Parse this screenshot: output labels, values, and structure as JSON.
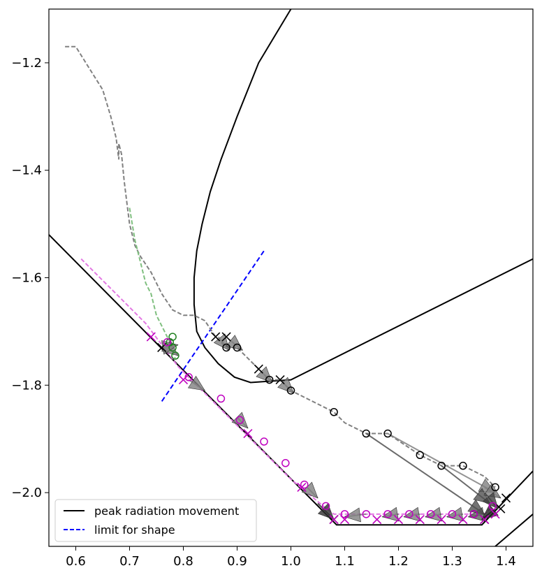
{
  "chart_data": {
    "type": "line",
    "title": "",
    "xlabel": "",
    "ylabel": "",
    "xlim": [
      0.55,
      1.45
    ],
    "ylim": [
      -2.1,
      -1.1
    ],
    "xticks": [
      0.6,
      0.7,
      0.8,
      0.9,
      1.0,
      1.1,
      1.2,
      1.3,
      1.4
    ],
    "xtick_labels": [
      "0.6",
      "0.7",
      "0.8",
      "0.9",
      "1.0",
      "1.1",
      "1.2",
      "1.3",
      "1.4"
    ],
    "yticks": [
      -1.2,
      -1.4,
      -1.6,
      -1.8,
      -2.0
    ],
    "ytick_labels": [
      "−1.2",
      "−1.4",
      "−1.6",
      "−1.8",
      "−2.0"
    ],
    "grid": false,
    "legend_position": "lower-left",
    "legend": [
      {
        "label": "peak radiation movement",
        "color": "#000000",
        "style": "solid"
      },
      {
        "label": "limit for shape",
        "color": "#0000ff",
        "style": "dashed"
      }
    ],
    "boundaries": [
      {
        "x": [
          0.55,
          1.085,
          1.355,
          1.45
        ],
        "y": [
          -1.52,
          -2.06,
          -2.06,
          -1.96
        ],
        "color": "#000000"
      },
      {
        "x": [
          1.38,
          1.45
        ],
        "y": [
          -2.1,
          -2.04
        ],
        "color": "#000000"
      },
      {
        "x": [
          1.0,
          0.94,
          0.9,
          0.87,
          0.85,
          0.835,
          0.825,
          0.82,
          0.82,
          0.825,
          0.84,
          0.865,
          0.895,
          0.925,
          1.0,
          1.45
        ],
        "y": [
          -1.1,
          -1.2,
          -1.3,
          -1.38,
          -1.44,
          -1.5,
          -1.55,
          -1.6,
          -1.65,
          -1.7,
          -1.73,
          -1.76,
          -1.785,
          -1.795,
          -1.79,
          -1.565
        ],
        "color": "#000000"
      }
    ],
    "limit_line": {
      "x": [
        0.76,
        0.95
      ],
      "y": [
        -1.83,
        -1.55
      ],
      "color": "#0000ff"
    },
    "series": [
      {
        "color": "#808080",
        "x": [
          0.58,
          0.6,
          0.625,
          0.65,
          0.665,
          0.675,
          0.68,
          0.68,
          0.685,
          0.69,
          0.695,
          0.7,
          0.71,
          0.72,
          0.74,
          0.76,
          0.78,
          0.8,
          0.82,
          0.84,
          0.86,
          0.88,
          0.9,
          0.92,
          0.94,
          0.96,
          0.98,
          1.0,
          1.04,
          1.08,
          1.1,
          1.14,
          1.18,
          1.24,
          1.28,
          1.32,
          1.36,
          1.38
        ],
        "y": [
          -1.17,
          -1.17,
          -1.21,
          -1.25,
          -1.3,
          -1.34,
          -1.38,
          -1.35,
          -1.37,
          -1.42,
          -1.46,
          -1.5,
          -1.54,
          -1.56,
          -1.59,
          -1.63,
          -1.66,
          -1.67,
          -1.67,
          -1.68,
          -1.71,
          -1.73,
          -1.73,
          -1.75,
          -1.77,
          -1.79,
          -1.79,
          -1.81,
          -1.83,
          -1.85,
          -1.87,
          -1.89,
          -1.89,
          -1.93,
          -1.95,
          -1.95,
          -1.97,
          -1.99
        ]
      },
      {
        "color": "#7fbf7f",
        "x": [
          0.7,
          0.705,
          0.71,
          0.715,
          0.72,
          0.725,
          0.73,
          0.74,
          0.745,
          0.75,
          0.76,
          0.77,
          0.775,
          0.78,
          0.78,
          0.785
        ],
        "y": [
          -1.47,
          -1.5,
          -1.53,
          -1.55,
          -1.57,
          -1.59,
          -1.61,
          -1.63,
          -1.65,
          -1.67,
          -1.69,
          -1.71,
          -1.72,
          -1.73,
          -1.74,
          -1.75
        ]
      },
      {
        "color": "#e377e3",
        "x": [
          0.61,
          0.64,
          0.67,
          0.7,
          0.73,
          0.76,
          0.79,
          0.82,
          0.85,
          0.88,
          0.91,
          0.94,
          0.97,
          1.0,
          1.03,
          1.06,
          1.08,
          1.1,
          1.14,
          1.18,
          1.22,
          1.26,
          1.3,
          1.34,
          1.36,
          1.38
        ],
        "y": [
          -1.565,
          -1.595,
          -1.625,
          -1.655,
          -1.685,
          -1.725,
          -1.765,
          -1.795,
          -1.825,
          -1.855,
          -1.885,
          -1.915,
          -1.945,
          -1.975,
          -2.0,
          -2.025,
          -2.04,
          -2.04,
          -2.04,
          -2.04,
          -2.04,
          -2.04,
          -2.04,
          -2.04,
          -2.04,
          -2.02
        ]
      }
    ],
    "markers": [
      {
        "marker": "o",
        "color": "#000000",
        "x": [
          0.88,
          0.9,
          0.96,
          1.0,
          1.08,
          1.14,
          1.18,
          1.24,
          1.28,
          1.32,
          1.38,
          1.34
        ]
      },
      {
        "marker": "x",
        "color": "#000000",
        "x2": [
          0.86,
          0.88,
          0.94,
          0.98,
          0.76,
          1.36,
          1.4,
          1.39,
          1.08
        ]
      },
      {
        "marker": "o",
        "color": "#208020",
        "x": [
          0.78,
          0.78,
          0.785,
          0.775
        ]
      },
      {
        "marker": "o",
        "color": "#bf00bf",
        "x": [
          0.77,
          0.81,
          0.87,
          0.905,
          0.95,
          0.99,
          1.025,
          1.065,
          1.1,
          1.14,
          1.18,
          1.22,
          1.26,
          1.3,
          1.34,
          1.375
        ]
      },
      {
        "marker": "x",
        "color": "#bf00bf",
        "x": [
          0.74,
          0.8,
          0.92,
          1.02,
          1.08,
          1.1,
          1.16,
          1.2,
          1.24,
          1.28,
          1.32,
          1.36,
          1.38
        ]
      }
    ],
    "marker_y": {
      "black_o": [
        -1.73,
        -1.73,
        -1.79,
        -1.81,
        -1.85,
        -1.89,
        -1.89,
        -1.93,
        -1.95,
        -1.95,
        -1.99,
        -2.04
      ],
      "black_x": [
        -1.71,
        -1.71,
        -1.77,
        -1.79,
        -1.73,
        -2.05,
        -2.01,
        -2.03,
        -2.05
      ],
      "green_o": [
        -1.71,
        -1.73,
        -1.745,
        -1.72
      ],
      "magenta_o": [
        -1.72,
        -1.785,
        -1.825,
        -1.865,
        -1.905,
        -1.945,
        -1.985,
        -2.025,
        -2.04,
        -2.04,
        -2.04,
        -2.04,
        -2.04,
        -2.04,
        -2.04,
        -2.025
      ],
      "magenta_x": [
        -1.71,
        -1.79,
        -1.89,
        -1.99,
        -2.05,
        -2.05,
        -2.05,
        -2.05,
        -2.05,
        -2.05,
        -2.05,
        -2.05,
        -2.04
      ]
    },
    "arrows": [
      {
        "x": [
          0.865,
          0.885
        ],
        "y": [
          -1.71,
          -1.735
        ],
        "shade": "#808080"
      },
      {
        "x": [
          0.885,
          0.91
        ],
        "y": [
          -1.715,
          -1.735
        ],
        "shade": "#808080"
      },
      {
        "x": [
          0.945,
          0.965
        ],
        "y": [
          -1.775,
          -1.795
        ],
        "shade": "#808080"
      },
      {
        "x": [
          0.985,
          1.005
        ],
        "y": [
          -1.795,
          -1.815
        ],
        "shade": "#808080"
      },
      {
        "x": [
          0.76,
          0.79
        ],
        "y": [
          -1.72,
          -1.745
        ],
        "shade": "#808080"
      },
      {
        "x": [
          0.76,
          0.79
        ],
        "y": [
          -1.73,
          -1.725
        ],
        "shade": "#808080"
      },
      {
        "x": [
          0.81,
          0.84
        ],
        "y": [
          -1.79,
          -1.81
        ],
        "shade": "#808080"
      },
      {
        "x": [
          0.9,
          0.92
        ],
        "y": [
          -1.86,
          -1.88
        ],
        "shade": "#808080"
      },
      {
        "x": [
          1.03,
          1.05
        ],
        "y": [
          -1.99,
          -2.01
        ],
        "shade": "#808080"
      },
      {
        "x": [
          1.05,
          1.08
        ],
        "y": [
          -2.02,
          -2.05
        ],
        "shade": "#303030"
      },
      {
        "x": [
          1.14,
          1.1
        ],
        "y": [
          -2.04,
          -2.045
        ],
        "shade": "#808080"
      },
      {
        "x": [
          1.2,
          1.17
        ],
        "y": [
          -2.04,
          -2.045
        ],
        "shade": "#808080"
      },
      {
        "x": [
          1.24,
          1.21
        ],
        "y": [
          -2.04,
          -2.045
        ],
        "shade": "#808080"
      },
      {
        "x": [
          1.28,
          1.25
        ],
        "y": [
          -2.04,
          -2.045
        ],
        "shade": "#808080"
      },
      {
        "x": [
          1.32,
          1.29
        ],
        "y": [
          -2.04,
          -2.045
        ],
        "shade": "#808080"
      },
      {
        "x": [
          1.36,
          1.33
        ],
        "y": [
          -2.04,
          -2.045
        ],
        "shade": "#606060"
      },
      {
        "x": [
          1.14,
          1.36
        ],
        "y": [
          -1.89,
          -2.04
        ],
        "shade": "#505050"
      },
      {
        "x": [
          1.18,
          1.38
        ],
        "y": [
          -1.89,
          -2.0
        ],
        "shade": "#808080"
      },
      {
        "x": [
          1.28,
          1.37
        ],
        "y": [
          -1.95,
          -2.02
        ],
        "shade": "#505050"
      },
      {
        "x": [
          1.36,
          1.39
        ],
        "y": [
          -1.99,
          -2.01
        ],
        "shade": "#808080"
      },
      {
        "x": [
          1.36,
          1.385
        ],
        "y": [
          -2.0,
          -2.03
        ],
        "shade": "#404040"
      },
      {
        "x": [
          1.38,
          1.355
        ],
        "y": [
          -2.03,
          -2.05
        ],
        "shade": "#202020"
      }
    ]
  }
}
